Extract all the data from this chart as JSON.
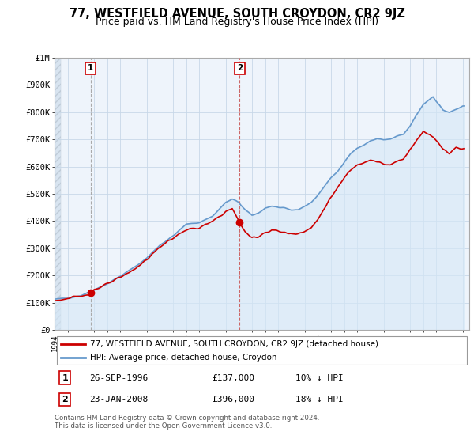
{
  "title": "77, WESTFIELD AVENUE, SOUTH CROYDON, CR2 9JZ",
  "subtitle": "Price paid vs. HM Land Registry's House Price Index (HPI)",
  "title_fontsize": 10.5,
  "subtitle_fontsize": 9,
  "ylabel_ticks": [
    "£0",
    "£100K",
    "£200K",
    "£300K",
    "£400K",
    "£500K",
    "£600K",
    "£700K",
    "£800K",
    "£900K",
    "£1M"
  ],
  "ytick_values": [
    0,
    100000,
    200000,
    300000,
    400000,
    500000,
    600000,
    700000,
    800000,
    900000,
    1000000
  ],
  "xlim_start": 1994.0,
  "xlim_end": 2025.5,
  "ylim_top": 1000000,
  "sale1_year": 1996.73,
  "sale1_price": 137000,
  "sale2_year": 2008.06,
  "sale2_price": 396000,
  "property_color": "#cc0000",
  "hpi_color": "#6699cc",
  "hpi_fill_color": "#d6e8f7",
  "vline1_color": "#bbbbbb",
  "vline2_color": "#cc6666",
  "legend_property": "77, WESTFIELD AVENUE, SOUTH CROYDON, CR2 9JZ (detached house)",
  "legend_hpi": "HPI: Average price, detached house, Croydon",
  "table_row1_num": "1",
  "table_row1_date": "26-SEP-1996",
  "table_row1_price": "£137,000",
  "table_row1_hpi": "10% ↓ HPI",
  "table_row2_num": "2",
  "table_row2_date": "23-JAN-2008",
  "table_row2_price": "£396,000",
  "table_row2_hpi": "18% ↓ HPI",
  "copyright_text": "Contains HM Land Registry data © Crown copyright and database right 2024.\nThis data is licensed under the Open Government Licence v3.0.",
  "background_color": "#ffffff",
  "grid_color": "#c8d8e8",
  "hatch_area_color": "#e0e8f0"
}
